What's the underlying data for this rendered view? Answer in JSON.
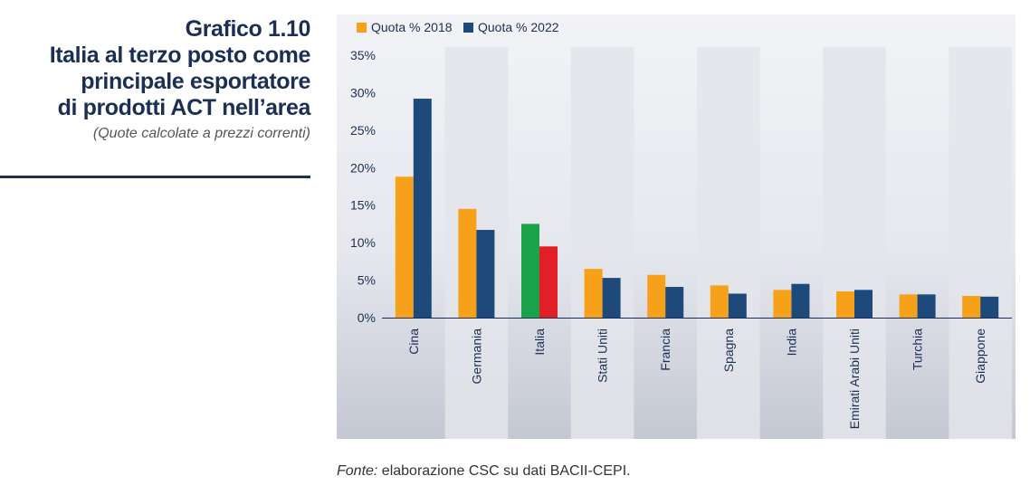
{
  "header": {
    "chart_number": "Grafico 1.10",
    "title": "Italia al terzo posto come\nprincipale esportatore\ndi prodotti ACT nell’area",
    "subtitle": "(Quote calcolate a prezzi correnti)"
  },
  "source": {
    "label": "Fonte:",
    "text": " elaborazione CSC su dati BACII-CEPI."
  },
  "colors": {
    "series_2018": "#f7a11a",
    "series_2022": "#1d4a7a",
    "italia_2018": "#1aa34a",
    "italia_2022": "#e21e26",
    "title": "#1b2f55"
  },
  "chart_data": {
    "type": "bar",
    "categories": [
      "Cina",
      "Germania",
      "Italia",
      "Stati Uniti",
      "Francia",
      "Spagna",
      "India",
      "Emirati Arabi Uniti",
      "Turchia",
      "Giappone"
    ],
    "series": [
      {
        "name": "Quota % 2018",
        "values": [
          18.8,
          14.5,
          12.5,
          6.5,
          5.7,
          4.3,
          3.7,
          3.5,
          3.1,
          2.9
        ]
      },
      {
        "name": "Quota % 2022",
        "values": [
          29.2,
          11.7,
          9.5,
          5.3,
          4.1,
          3.2,
          4.5,
          3.7,
          3.1,
          2.8
        ]
      }
    ],
    "ylim": [
      0,
      35
    ],
    "yticks": [
      "0%",
      "5%",
      "10%",
      "15%",
      "20%",
      "25%",
      "30%",
      "35%"
    ],
    "ytick_values": [
      0,
      5,
      10,
      15,
      20,
      25,
      30,
      35
    ],
    "legend_position": "top-left",
    "grid": false,
    "highlight": {
      "category": "Italia",
      "colors": [
        "#1aa34a",
        "#e21e26"
      ]
    }
  }
}
